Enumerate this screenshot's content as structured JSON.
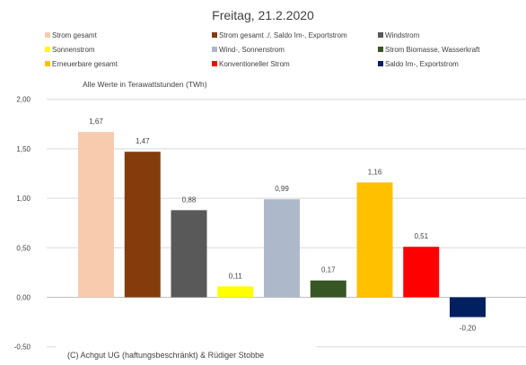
{
  "chart_data": {
    "type": "bar",
    "title": "Freitag, 21.2.2020",
    "note": "Alle Werte in Terawattstunden (TWh)",
    "footer": "(C) Achgut UG (haftungsbeschränkt) & Rüdiger Stobbe",
    "xlabel": "",
    "ylabel": "",
    "ylim": [
      -0.5,
      2.0
    ],
    "ytick_step": 0.5,
    "ytick_labels": [
      "-0,50",
      "0,00",
      "0,50",
      "1,00",
      "1,50",
      "2,00"
    ],
    "grid": true,
    "legend_position": "top",
    "series": [
      {
        "name": "Strom gesamt",
        "value": 1.67,
        "label": "1,67",
        "color": "#F8CBAD"
      },
      {
        "name": "Strom gesamt ./. Saldo Im-, Exportstrom",
        "value": 1.47,
        "label": "1,47",
        "color": "#843C0C"
      },
      {
        "name": "Windstrom",
        "value": 0.88,
        "label": "0,88",
        "color": "#595959"
      },
      {
        "name": "Sonnenstrom",
        "value": 0.11,
        "label": "0,11",
        "color": "#FFFF00"
      },
      {
        "name": "Wind-, Sonnenstrom",
        "value": 0.99,
        "label": "0,99",
        "color": "#ADB9CA"
      },
      {
        "name": "Strom Biomasse, Wasserkraft",
        "value": 0.17,
        "label": "0,17",
        "color": "#375623"
      },
      {
        "name": "Erneuerbare gesamt",
        "value": 1.16,
        "label": "1,16",
        "color": "#FFC000"
      },
      {
        "name": "Konventioneller Strom",
        "value": 0.51,
        "label": "0,51",
        "color": "#FF0000"
      },
      {
        "name": "Saldo Im-, Exportstrom",
        "value": -0.2,
        "label": "-0,20",
        "color": "#002060"
      }
    ]
  }
}
